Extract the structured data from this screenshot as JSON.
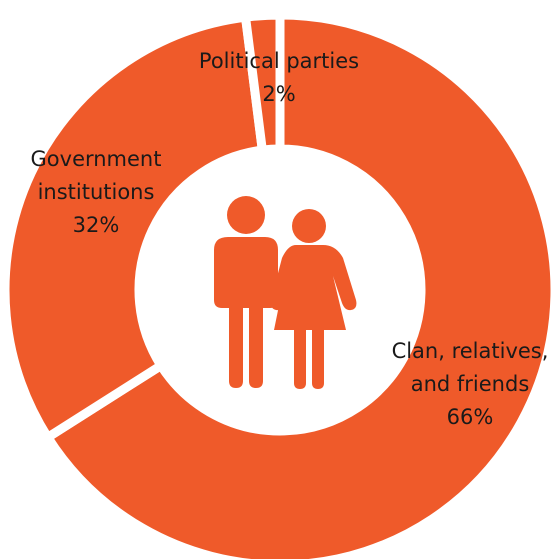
{
  "chart_data": {
    "type": "pie",
    "variant": "donut",
    "title": "",
    "start_angle_deg": 0,
    "direction": "clockwise",
    "slices": [
      {
        "label_lines": [
          "Clan, relatives,",
          "and friends"
        ],
        "value": 66,
        "display": "66%"
      },
      {
        "label_lines": [
          "Government",
          "institutions"
        ],
        "value": 32,
        "display": "32%"
      },
      {
        "label_lines": [
          "Political parties"
        ],
        "value": 2,
        "display": "2%"
      }
    ],
    "center_icon": "couple-icon",
    "colors": {
      "slice": "#EF5A2A",
      "separator": "#ffffff",
      "label": "#1a1a1a"
    }
  }
}
